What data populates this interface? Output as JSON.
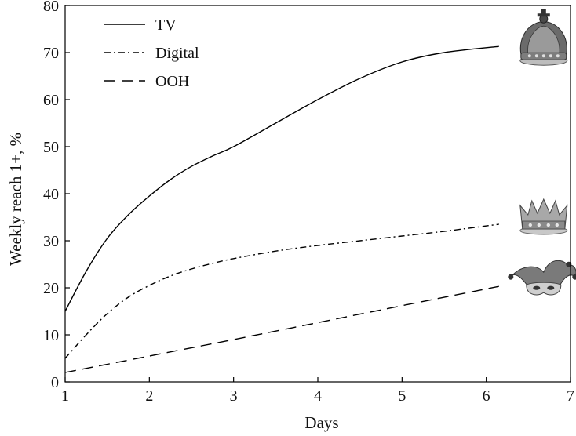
{
  "chart_data": {
    "type": "line",
    "title": "",
    "xlabel": "Days",
    "ylabel": "Weekly reach 1+, %",
    "xlim": [
      1,
      7
    ],
    "ylim": [
      0,
      80
    ],
    "xticks": [
      1,
      2,
      3,
      4,
      5,
      6,
      7
    ],
    "yticks": [
      0,
      10,
      20,
      30,
      40,
      50,
      60,
      70,
      80
    ],
    "grid": false,
    "legend_position": "top-left",
    "series": [
      {
        "name": "TV",
        "style": "solid",
        "color": "#000000",
        "x": [
          1,
          1.25,
          1.5,
          1.75,
          2,
          2.25,
          2.5,
          2.75,
          3,
          3.5,
          4,
          4.5,
          5,
          5.5,
          6.15
        ],
        "y": [
          15,
          23.5,
          30.5,
          35.5,
          39.5,
          43,
          45.8,
          48,
          50,
          55,
          60,
          64.5,
          68,
          70,
          71.3
        ],
        "end_marker": "royal-crown-icon"
      },
      {
        "name": "Digital",
        "style": "dash-dot",
        "color": "#000000",
        "x": [
          1,
          1.25,
          1.5,
          1.75,
          2,
          2.25,
          2.5,
          2.75,
          3,
          3.5,
          4,
          4.5,
          5,
          5.5,
          6.15
        ],
        "y": [
          5,
          10,
          14.5,
          18,
          20.5,
          22.5,
          24,
          25.2,
          26.2,
          27.8,
          29,
          30,
          31,
          32,
          33.5
        ],
        "end_marker": "silver-crown-icon"
      },
      {
        "name": "OOH",
        "style": "dashed",
        "color": "#000000",
        "x": [
          1,
          2,
          3,
          4,
          5,
          6.15
        ],
        "y": [
          2,
          5.5,
          9,
          12.6,
          16.2,
          20.3
        ],
        "end_marker": "jester-hat-icon"
      }
    ]
  }
}
